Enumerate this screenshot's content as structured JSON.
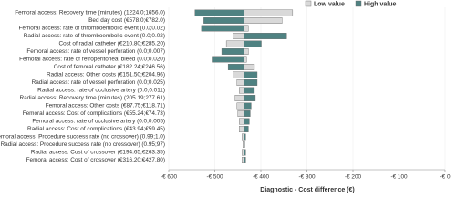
{
  "chart_data": {
    "type": "tornado",
    "x_label": "Diagnostic - Cost difference (€)",
    "base_value": -437,
    "categories": [
      "Femoral access: Recovery time (minutes) (1224.0;1656.0)",
      "Bed day cost (€578.0;€782.0)",
      "Femoral access: rate of thromboembolic event (0.0;0.02)",
      "Radial access: rate of thromboembolic event (0.0;0.02)",
      "Cost of radial catheter (€210.80;€285.20)",
      "Femoral access: rate of vessel perforation (0.0;0.007)",
      "Femoral access: rate of retroperitoneal bleed (0.0;0.020)",
      "Cost of femoral catheter (€182.24;€246.56)",
      "Radial access: Other costs (€151.50;€204.96)",
      "Radial access: rate of vessel perforation (0.0;0.025)",
      "Radial access: rate of occlusive artery (0.0;0.011)",
      "Radial access: Recovery time (minutes) (205.19;277.61)",
      "Femoral access: Other costs (€87.75;€118.71)",
      "Femoral access: Cost of complications (€55.24;€74.73)",
      "Femoral access: rate of occlusive artery (0.0;0.005)",
      "Radial access: Cost of complications (€43.94;€59.45)",
      "Femoral access: Procedure success rate (no crossover) (0.99;1.0)",
      "Radial access: Procedure success rate (no crossover) (0.95;97)",
      "Radial access: Cost of crossover (€194.65;€263.35)",
      "Femoral access: Cost of crossover (€316.20;€427.80)"
    ],
    "series": [
      {
        "name": "Low value",
        "color": "#d9d9d9",
        "values": [
          -331,
          -354,
          -427,
          -460,
          -475,
          -427,
          -431,
          -414,
          -460,
          -452,
          -447,
          -456,
          -452,
          -450,
          -447,
          -447,
          -441,
          -439,
          -441,
          -441
        ]
      },
      {
        "name": "High value",
        "color": "#4f8282",
        "values": [
          -543,
          -524,
          -529,
          -344,
          -399,
          -485,
          -504,
          -471,
          -408,
          -408,
          -414,
          -412,
          -421,
          -423,
          -425,
          -427,
          -433,
          -435,
          -433,
          -433
        ]
      }
    ],
    "xlim": [
      -600,
      0
    ],
    "xticks": [
      {
        "value": -600,
        "label": "-€ 600"
      },
      {
        "value": -500,
        "label": "-€ 500"
      },
      {
        "value": -400,
        "label": "-€ 400"
      },
      {
        "value": -300,
        "label": "-€ 300"
      },
      {
        "value": -200,
        "label": "-€ 200"
      },
      {
        "value": -100,
        "label": "-€ 100"
      },
      {
        "value": 0,
        "label": "-€ 0"
      }
    ],
    "grid": true
  }
}
